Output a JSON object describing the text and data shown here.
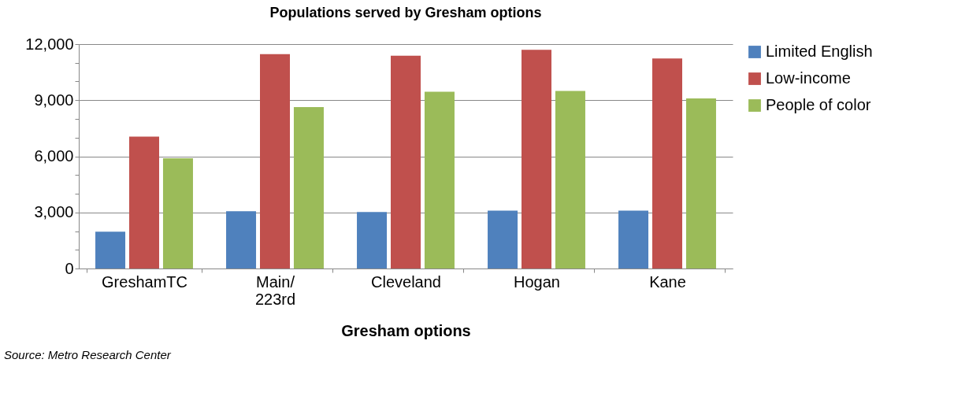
{
  "chart_data": {
    "type": "bar",
    "title": "Populations served by Gresham options",
    "xlabel": "Gresham options",
    "categories": [
      "GreshamTC",
      "Main/ 223rd",
      "Cleveland",
      "Hogan",
      "Kane"
    ],
    "series": [
      {
        "name": "Limited English",
        "color": "#4f81bd",
        "values": [
          1970,
          3060,
          3020,
          3100,
          3100
        ]
      },
      {
        "name": "Low-income",
        "color": "#c0504d",
        "values": [
          7050,
          11460,
          11380,
          11690,
          11230
        ]
      },
      {
        "name": "People of color",
        "color": "#9bbb59",
        "values": [
          5890,
          8630,
          9450,
          9490,
          9100
        ]
      }
    ],
    "ylim": [
      0,
      12000
    ],
    "yticks": [
      0,
      {
        "value": 1000,
        "label": null
      },
      {
        "value": 2000,
        "label": null
      },
      {
        "value": 3000,
        "label": "3,000"
      },
      {
        "value": 4000,
        "label": null
      },
      {
        "value": 5000,
        "label": null
      },
      {
        "value": 6000,
        "label": "6,000"
      },
      {
        "value": 7000,
        "label": null
      },
      {
        "value": 8000,
        "label": null
      },
      {
        "value": 9000,
        "label": "9,000"
      },
      {
        "value": 10000,
        "label": null
      },
      {
        "value": 11000,
        "label": null
      },
      {
        "value": 12000,
        "label": "12,000"
      }
    ],
    "grid": "y",
    "legend": "right",
    "annotations": [
      "Source: Metro Research Center"
    ]
  }
}
